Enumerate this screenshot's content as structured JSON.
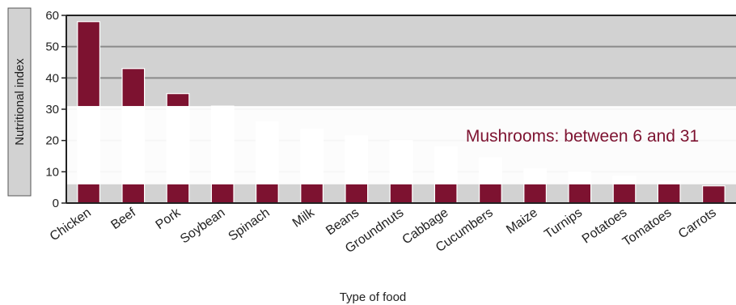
{
  "chart_data": {
    "type": "bar",
    "xlabel": "Type of food",
    "ylabel": "Nutritional index",
    "ylim": [
      0,
      60
    ],
    "yticks": [
      0,
      10,
      20,
      30,
      40,
      50,
      60
    ],
    "grid": true,
    "categories": [
      "Chicken",
      "Beef",
      "Pork",
      "Soybean",
      "Spinach",
      "Milk",
      "Beans",
      "Groundnuts",
      "Cabbage",
      "Cucumbers",
      "Maize",
      "Turnips",
      "Potatoes",
      "Tomatoes",
      "Carrots"
    ],
    "values": [
      58,
      43,
      35,
      31,
      26,
      23.5,
      21.5,
      20,
      18,
      14.5,
      11,
      10,
      8.5,
      7,
      5.5
    ],
    "reference_band": {
      "label": "Mushrooms: between 6 and 31",
      "low": 6,
      "high": 31
    },
    "colors": {
      "bar": "#7d1230",
      "background": "#d2d2d2",
      "band": "#ffffff",
      "band_label": "#7d1230",
      "grid": "#8a8a8a",
      "ylabel_box": "#d2d2d2"
    }
  }
}
